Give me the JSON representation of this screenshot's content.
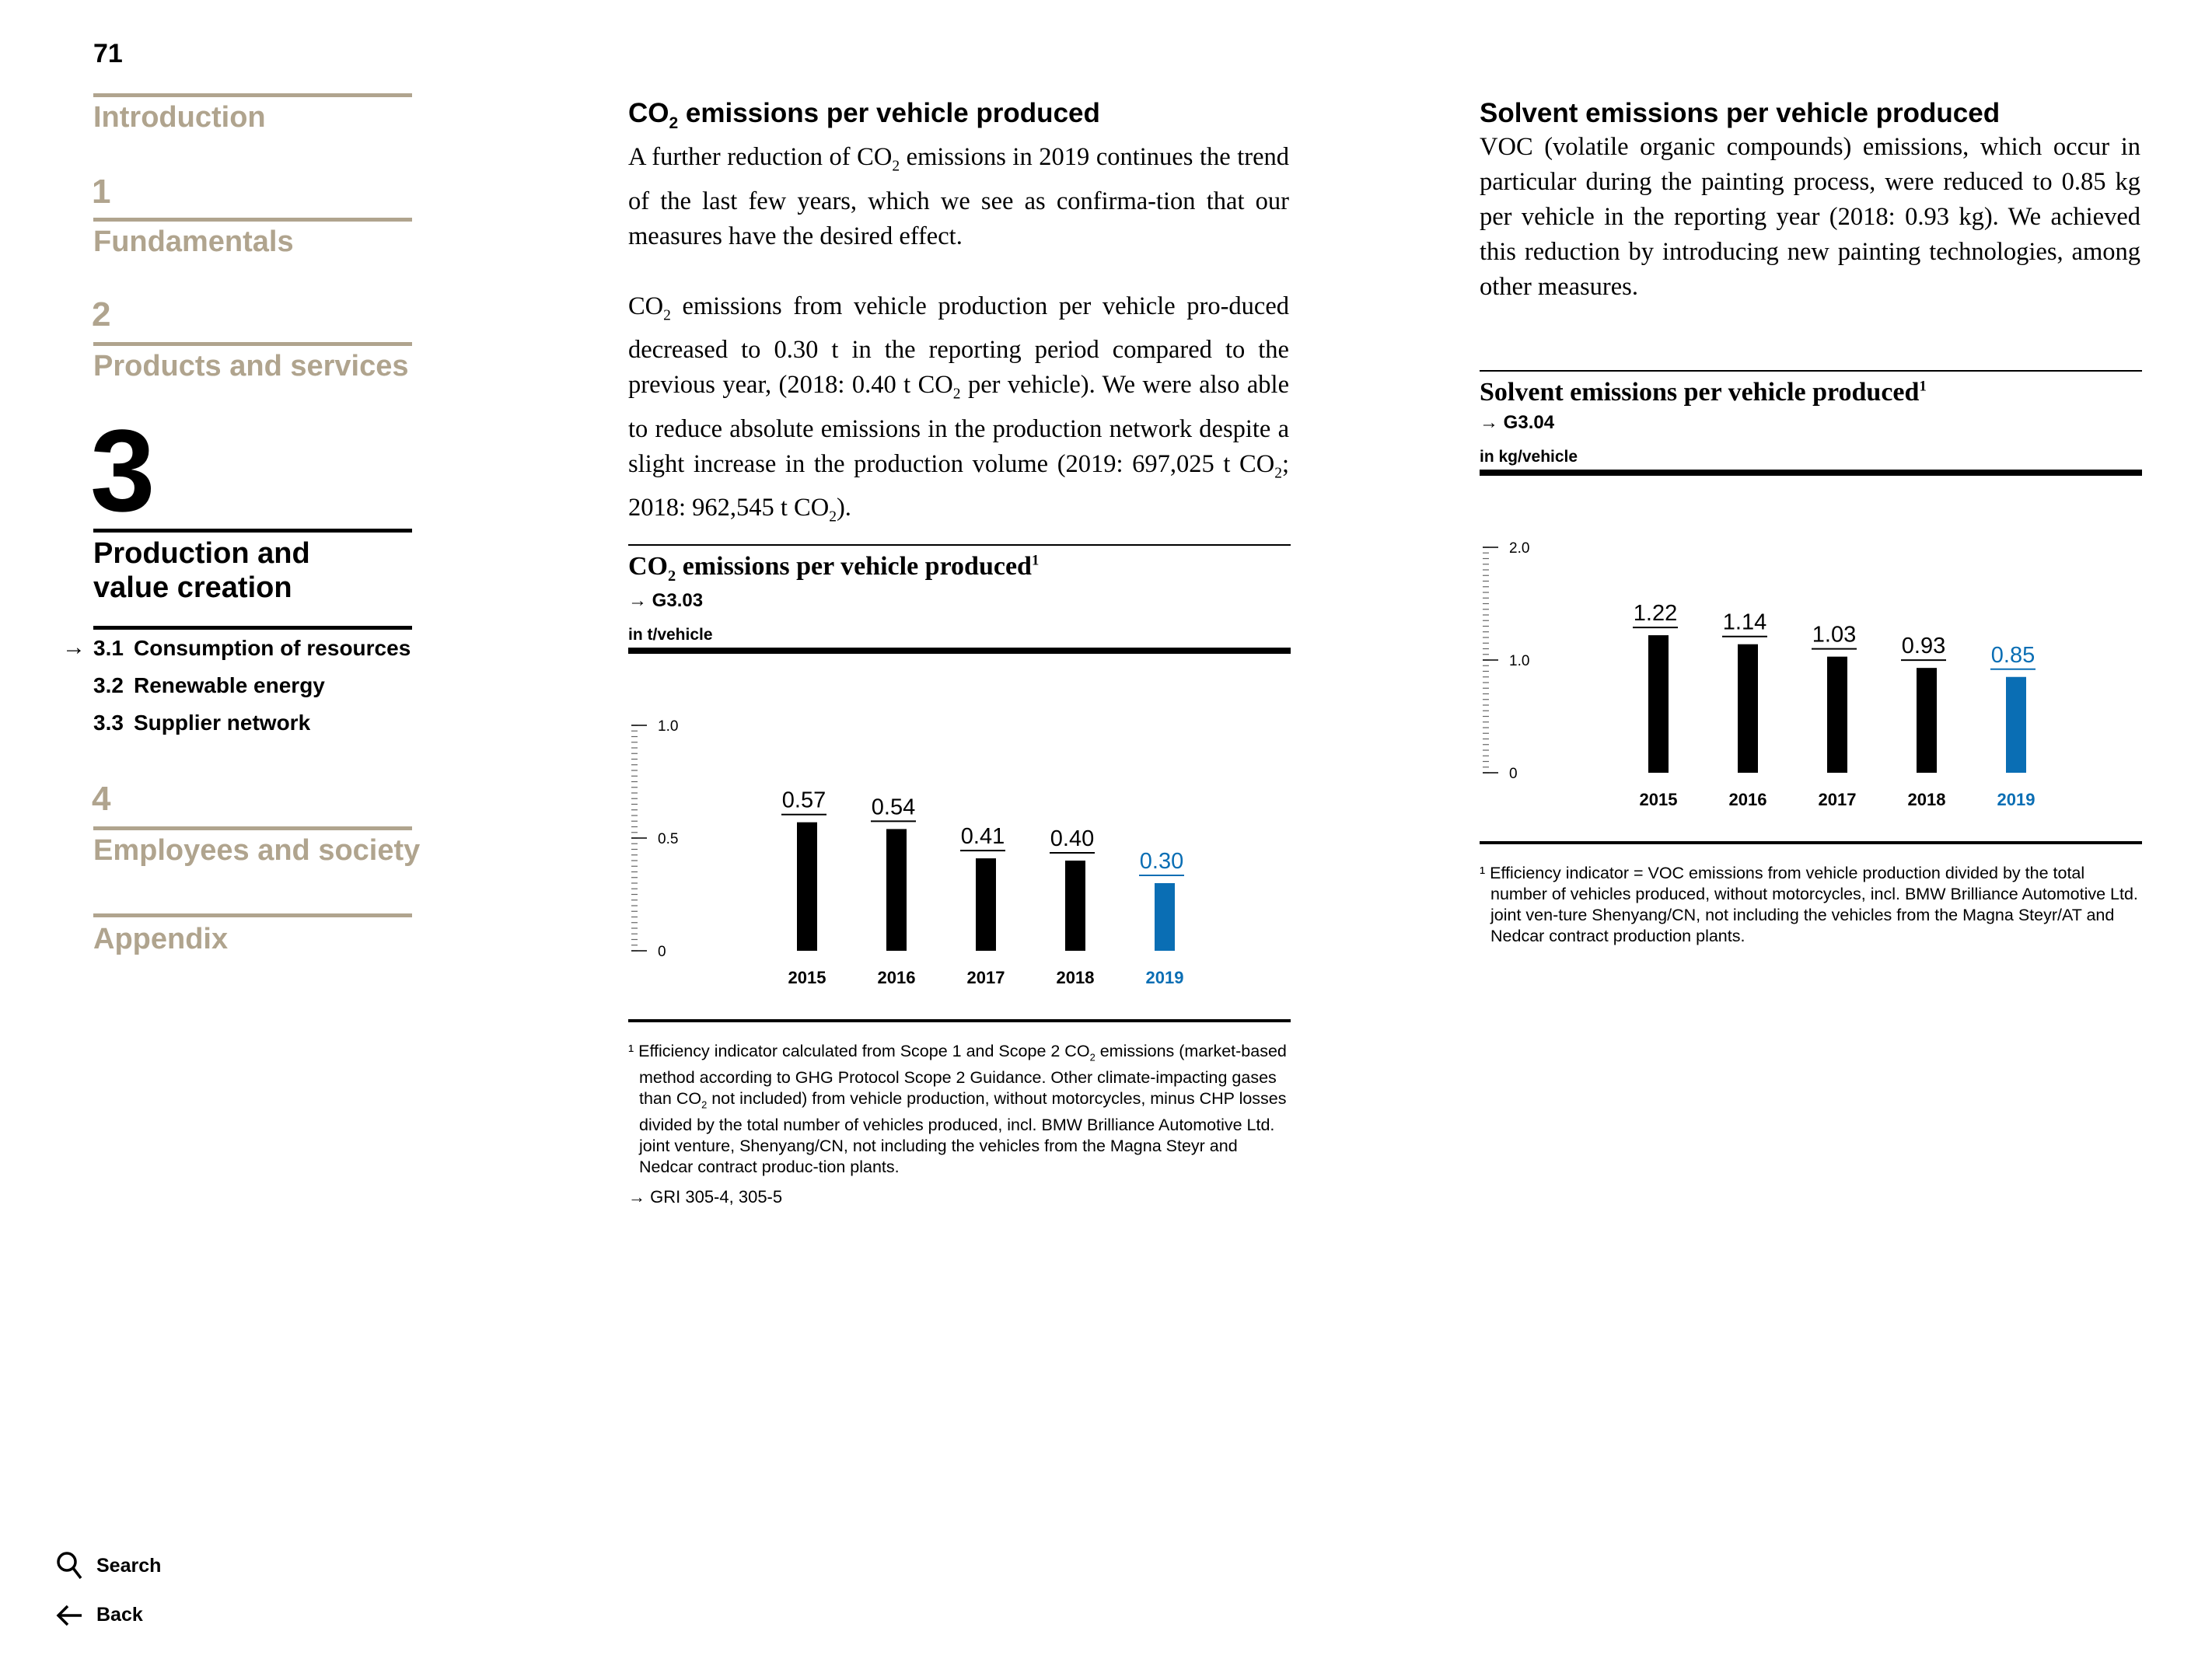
{
  "page_number": "71",
  "nav": {
    "intro": "Introduction",
    "s1_num": "1",
    "s1_title": "Fundamentals",
    "s2_num": "2",
    "s2_title": "Products and services",
    "s3_num": "3",
    "s3_title_line1": "Production and",
    "s3_title_line2": "value creation",
    "s3_sub": [
      {
        "num": "3.1",
        "label": "Consumption of resources"
      },
      {
        "num": "3.2",
        "label": "Renewable energy"
      },
      {
        "num": "3.3",
        "label": "Supplier network"
      }
    ],
    "s4_num": "4",
    "s4_title": "Employees and society",
    "appendix": "Appendix",
    "search": "Search",
    "back": "Back"
  },
  "left": {
    "heading_pre": "CO",
    "heading_sub": "2",
    "heading_post": " emissions per vehicle produced",
    "p1": [
      "A further reduction of CO",
      "2",
      " emissions in 2019 continues the trend of the last few years, which we see as confirma-tion that our measures have the desired effect."
    ],
    "p2": [
      "CO",
      "2",
      " emissions from vehicle production per vehicle pro-duced decreased to 0.30 t in the reporting period compared to the previous year, (2018: 0.40 t CO",
      "2",
      " per vehicle). We were also able to reduce absolute emissions in the production network despite a slight increase in the production volume (2019: 697,025 t CO",
      "2",
      "; 2018: 962,545 t CO",
      "2",
      ")."
    ],
    "chart_title_pre": "CO",
    "chart_title_sub": "2",
    "chart_title_post": " emissions per vehicle produced",
    "chart_title_sup": "1",
    "chart_ref": "G3.03",
    "chart_unit": "in t/vehicle",
    "footnote": [
      "¹ Efficiency indicator calculated from Scope 1 and Scope 2 CO",
      "2",
      " emissions (market-based method according to GHG Protocol Scope 2 Guidance. Other climate-impacting gases than CO",
      "2",
      " not included) from vehicle production, without motorcycles, minus CHP losses divided by the total number of vehicles produced, incl. BMW Brilliance Automotive Ltd. joint venture, Shenyang/CN, not including the vehicles from the Magna Steyr and Nedcar contract produc-tion plants."
    ],
    "gri": "GRI 305-4, 305-5"
  },
  "right": {
    "heading": "Solvent emissions per vehicle produced",
    "p1": "VOC (volatile organic compounds) emissions, which occur in particular during the painting process, were reduced to 0.85 kg per vehicle in the reporting year (2018: 0.93 kg). We achieved this reduction by introducing new painting technologies, among other measures.",
    "chart_title": "Solvent emissions per vehicle produced",
    "chart_title_sup": "1",
    "chart_ref": "G3.04",
    "chart_unit": "in kg/vehicle",
    "footnote": "¹ Efficiency indicator = VOC emissions from vehicle production divided by the total number of vehicles produced, without motorcycles, incl. BMW Brilliance Automotive Ltd. joint ven-ture Shenyang/CN, not including the vehicles from the Magna Steyr/AT and Nedcar contract production plants."
  },
  "colors": {
    "accent": "#0a6eb4",
    "nav_muted": "#b0a48e",
    "bar": "#000000"
  },
  "chart_data": [
    {
      "type": "bar",
      "title": "CO2 emissions per vehicle produced",
      "ylabel": "in t/vehicle",
      "categories": [
        "2015",
        "2016",
        "2017",
        "2018",
        "2019"
      ],
      "values": [
        0.57,
        0.54,
        0.41,
        0.4,
        0.3
      ],
      "value_labels": [
        "0.57",
        "0.54",
        "0.41",
        "0.40",
        "0.30"
      ],
      "highlight_index": 4,
      "ylim": [
        0,
        1.0
      ],
      "yticks": [
        0,
        0.5,
        1.0
      ],
      "ytick_labels": [
        "0",
        "0.5",
        "1.0"
      ],
      "grid": false
    },
    {
      "type": "bar",
      "title": "Solvent emissions per vehicle produced",
      "ylabel": "in kg/vehicle",
      "categories": [
        "2015",
        "2016",
        "2017",
        "2018",
        "2019"
      ],
      "values": [
        1.22,
        1.14,
        1.03,
        0.93,
        0.85
      ],
      "value_labels": [
        "1.22",
        "1.14",
        "1.03",
        "0.93",
        "0.85"
      ],
      "highlight_index": 4,
      "ylim": [
        0,
        2.0
      ],
      "yticks": [
        0,
        1.0,
        2.0
      ],
      "ytick_labels": [
        "0",
        "1.0",
        "2.0"
      ],
      "grid": false
    }
  ]
}
